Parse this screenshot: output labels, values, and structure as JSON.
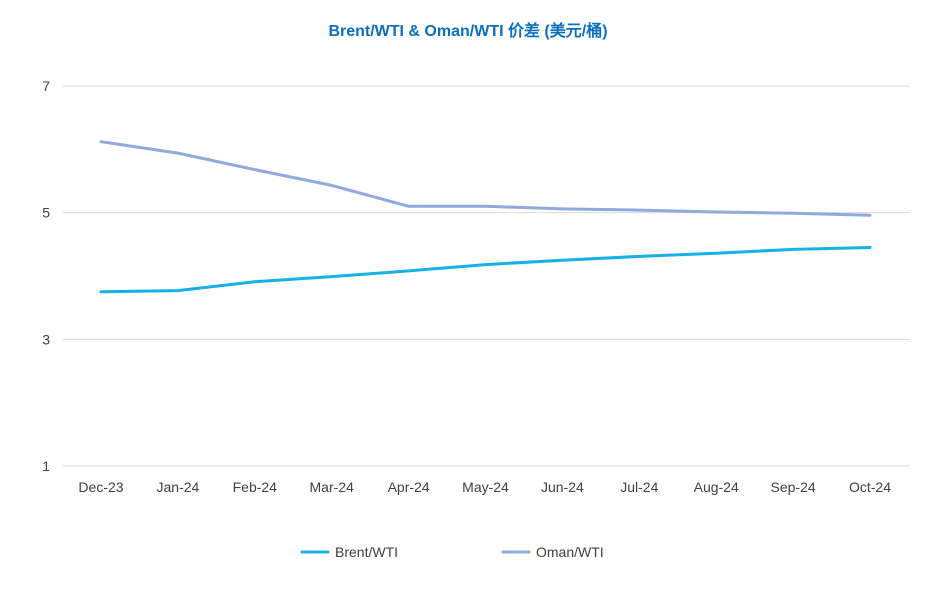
{
  "chart_data": {
    "type": "line",
    "title": "Brent/WTI & Oman/WTI 价差 (美元/桶)",
    "xlabel": "",
    "ylabel": "",
    "categories": [
      "Dec-23",
      "Jan-24",
      "Feb-24",
      "Mar-24",
      "Apr-24",
      "May-24",
      "Jun-24",
      "Jul-24",
      "Aug-24",
      "Sep-24",
      "Oct-24"
    ],
    "ylim": [
      1,
      7
    ],
    "yticks": [
      "1",
      "3",
      "5",
      "7"
    ],
    "grid": true,
    "legend_position": "bottom",
    "series": [
      {
        "name": "Brent/WTI",
        "color": "#17b0e6",
        "values": [
          3.75,
          3.77,
          3.91,
          3.99,
          4.08,
          4.18,
          4.25,
          4.31,
          4.36,
          4.42,
          4.45
        ]
      },
      {
        "name": "Oman/WTI",
        "color": "#8faadc",
        "values": [
          6.12,
          5.94,
          5.68,
          5.43,
          5.1,
          5.1,
          5.06,
          5.04,
          5.01,
          4.99,
          4.96
        ]
      }
    ]
  }
}
